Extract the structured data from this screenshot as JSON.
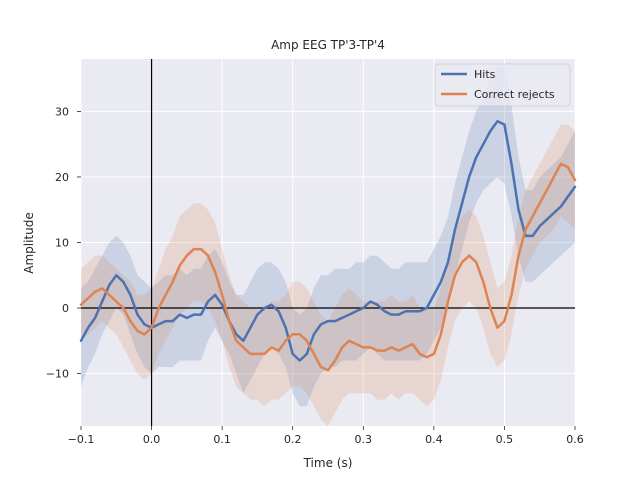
{
  "chart_data": {
    "type": "line",
    "title": "Amp EEG TP'3-TP'4",
    "xlabel": "Time (s)",
    "ylabel": "Amplitude",
    "xlim": [
      -0.1,
      0.6
    ],
    "ylim": [
      -18,
      38
    ],
    "xticks": [
      -0.1,
      0.0,
      0.1,
      0.2,
      0.3,
      0.4,
      0.5,
      0.6
    ],
    "xtick_labels": [
      "−0.1",
      "0.0",
      "0.1",
      "0.2",
      "0.3",
      "0.4",
      "0.5",
      "0.6"
    ],
    "yticks": [
      -10,
      0,
      10,
      20,
      30
    ],
    "ytick_labels": [
      "−10",
      "0",
      "10",
      "20",
      "30"
    ],
    "grid": true,
    "legend_position": "top-right",
    "reference_lines": {
      "vertical_x": 0.0,
      "horizontal_y": 0
    },
    "x": [
      -0.1,
      -0.09,
      -0.08,
      -0.07,
      -0.06,
      -0.05,
      -0.04,
      -0.03,
      -0.02,
      -0.01,
      0.0,
      0.01,
      0.02,
      0.03,
      0.04,
      0.05,
      0.06,
      0.07,
      0.08,
      0.09,
      0.1,
      0.11,
      0.12,
      0.13,
      0.14,
      0.15,
      0.16,
      0.17,
      0.18,
      0.19,
      0.2,
      0.21,
      0.22,
      0.23,
      0.24,
      0.25,
      0.26,
      0.27,
      0.28,
      0.29,
      0.3,
      0.31,
      0.32,
      0.33,
      0.34,
      0.35,
      0.36,
      0.37,
      0.38,
      0.39,
      0.4,
      0.41,
      0.42,
      0.43,
      0.44,
      0.45,
      0.46,
      0.47,
      0.48,
      0.49,
      0.5,
      0.51,
      0.52,
      0.53,
      0.54,
      0.55,
      0.56,
      0.57,
      0.58,
      0.59,
      0.6
    ],
    "series": [
      {
        "name": "Hits",
        "color": "#4c72b0",
        "values": [
          -5,
          -3,
          -1.5,
          1,
          3.5,
          5,
          4,
          2,
          -1,
          -2.5,
          -3,
          -2.5,
          -2,
          -2,
          -1,
          -1.5,
          -1,
          -1,
          1,
          2,
          0.5,
          -2,
          -4,
          -5,
          -3,
          -1,
          0,
          0.5,
          -0.5,
          -3,
          -7,
          -8,
          -7,
          -4,
          -2.5,
          -2,
          -2,
          -1.5,
          -1,
          -0.5,
          0,
          1,
          0.5,
          -0.5,
          -1,
          -1,
          -0.5,
          -0.5,
          -0.5,
          0,
          2,
          4,
          7,
          12,
          16,
          20,
          23,
          25,
          27,
          28.5,
          28,
          22,
          15,
          11,
          11,
          12.5,
          13.5,
          14.5,
          15.5,
          17,
          18.5
        ],
        "band_lower": [
          -12,
          -9,
          -7,
          -4,
          -2,
          0,
          -1,
          -4,
          -7,
          -9,
          -10,
          -9,
          -9,
          -9,
          -8,
          -8,
          -8,
          -8,
          -5,
          -3,
          -5,
          -7,
          -10,
          -13,
          -11,
          -9,
          -7,
          -6,
          -7,
          -9,
          -13,
          -15,
          -15,
          -12,
          -10,
          -9,
          -9,
          -8,
          -8,
          -8,
          -7,
          -6,
          -7,
          -8,
          -8,
          -8,
          -8,
          -8,
          -8,
          -7,
          -5,
          -3,
          0,
          5,
          9,
          13,
          16,
          18,
          19,
          20,
          19,
          14,
          8,
          4,
          4,
          5,
          6,
          7,
          8,
          9,
          10
        ],
        "band_upper": [
          3,
          4,
          6,
          8,
          10,
          11,
          10,
          8,
          5,
          4,
          3,
          4,
          5,
          5,
          6,
          5,
          6,
          6,
          8,
          9,
          7,
          4,
          2,
          2,
          4,
          6,
          7,
          7,
          6,
          4,
          0,
          -1,
          0,
          3,
          5,
          5,
          6,
          6,
          6,
          7,
          7,
          8,
          8,
          7,
          6,
          6,
          7,
          7,
          7,
          7,
          9,
          11,
          14,
          19,
          23,
          27,
          30,
          32,
          35,
          37,
          37,
          31,
          23,
          18,
          18,
          20,
          21,
          22,
          23,
          25,
          27
        ]
      },
      {
        "name": "Correct rejects",
        "color": "#dd8452",
        "values": [
          0.5,
          1.5,
          2.5,
          3,
          2,
          1,
          0,
          -2,
          -3.5,
          -4,
          -3,
          0,
          2,
          4,
          6.5,
          8,
          9,
          9,
          8,
          5.5,
          2,
          -2,
          -5,
          -6,
          -7,
          -7,
          -7,
          -6,
          -6.5,
          -5,
          -4,
          -4,
          -5,
          -7,
          -9,
          -9.5,
          -8,
          -6,
          -5,
          -5.5,
          -6,
          -6,
          -6.5,
          -6.5,
          -6,
          -6.5,
          -6,
          -5.5,
          -7,
          -7.5,
          -7,
          -4,
          1,
          5,
          7,
          8,
          7,
          4,
          0,
          -3,
          -2,
          2,
          8,
          12,
          14,
          16,
          18,
          20,
          22,
          21.5,
          19.5
        ],
        "band_lower": [
          -5,
          -4,
          -3,
          -2,
          -3,
          -4,
          -6,
          -8,
          -10,
          -11,
          -10,
          -7,
          -5,
          -3,
          -1,
          0,
          1,
          1,
          0,
          -2,
          -5,
          -9,
          -12,
          -13,
          -14,
          -14,
          -15,
          -14,
          -14,
          -13,
          -12,
          -12,
          -13,
          -15,
          -17,
          -18,
          -16,
          -14,
          -13,
          -13,
          -13,
          -13,
          -14,
          -14,
          -13,
          -14,
          -13,
          -13,
          -14,
          -15,
          -14,
          -11,
          -6,
          -2,
          0,
          1,
          0,
          -3,
          -7,
          -9,
          -8,
          -4,
          2,
          6,
          8,
          10,
          11,
          12,
          14,
          13,
          12
        ],
        "band_upper": [
          6,
          7,
          8,
          8,
          7,
          6,
          5,
          4,
          2,
          2,
          3,
          6,
          9,
          11,
          14,
          15,
          16,
          16,
          15,
          13,
          9,
          5,
          2,
          1,
          0,
          0,
          0,
          1,
          1,
          2,
          4,
          4,
          3,
          1,
          -1,
          -2,
          0,
          2,
          3,
          2,
          1,
          1,
          1,
          1,
          2,
          1,
          1,
          2,
          0,
          0,
          0,
          3,
          8,
          12,
          14,
          15,
          14,
          11,
          7,
          3,
          4,
          8,
          14,
          18,
          20,
          22,
          24,
          26,
          28,
          28,
          27
        ]
      }
    ]
  }
}
